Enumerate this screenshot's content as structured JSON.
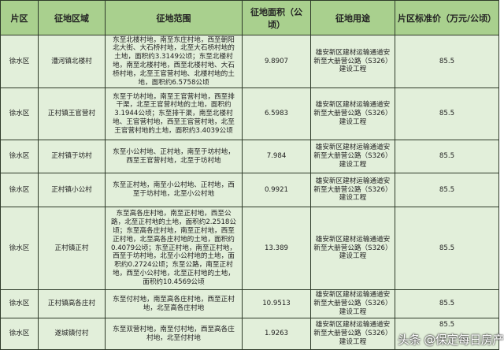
{
  "headers": [
    "片区",
    "征地区域",
    "征地范围",
    "征地面积（公顷）",
    "征地用途",
    "片区标准价（万元/公顷）"
  ],
  "rows": [
    {
      "district": "徐水区",
      "area_name": "漕河镇北楼村",
      "range": "东至北楼村地，南至东庄村地，西至朝阳北大街、大石桥村地，北至大石桥村地的土地，面积约3.3149公顷；东至北楼村地，南至北楼村地，西至北楼村地、大石桥村地，北至王官营村地、北楼村地的土地，面积约6.5758公顷",
      "size": "9.8907",
      "use": "雄安新区建材运输通道安新至大册营公路（S326）建设工程",
      "price": "85.5"
    },
    {
      "district": "徐水区",
      "area_name": "正村镇王官营村",
      "range": "东至于坊村地，南至王官营村地，西至排干渠，北至王官营村地的土地，面积约3.1944公顷；东至排干渠，南至北楼村地、王官营村地，西至王官营村地，北至王官营村地的土地，面积约3.4039公顷",
      "size": "6.5983",
      "use": "雄安新区建材运输通道安新至大册营公路（S326）建设工程",
      "price": "85.5"
    },
    {
      "district": "徐水区",
      "area_name": "正村镇于坊村",
      "range": "东至小公村地、正村地，南至于坊村地，西至王官营村地，北至于坊村地",
      "size": "7.984",
      "use": "雄安新区建材运输通道安新至大册营公路（S326）建设工程",
      "price": "85.5"
    },
    {
      "district": "徐水区",
      "area_name": "正村镇小公村",
      "range": "东至正村地，南至小公村地、正村地，西至于坊村地，北至小公村地",
      "size": "0.9921",
      "use": "雄安新区建材运输通道安新至大册营公路（S326）建设工程",
      "price": "85.5"
    },
    {
      "district": "徐水区",
      "area_name": "正村镇正村",
      "range": "东至高各庄村地，南至正村地，西至公路，北至正村地的土地，面积约2.2518公顷；东至高各庄村地，南至正村地，西至正村地，北至高各庄村地的土地，面积约0.4079公顷；东至正村地，南至正村地，西至于坊村地，北至小公村地的土地，面积约0.2724公顷；东至公路，南至正村地，西至小公村地，北至正村地的土地，面积约10.4569公顷",
      "size": "13.389",
      "use": "雄安新区建材运输通道安新至大册营公路（S326）建设工程",
      "price": "85.5"
    },
    {
      "district": "徐水区",
      "area_name": "正村镇高各庄村",
      "range": "东至付村地，南至高各庄村地，西至正村地，北至高各庄村地",
      "size": "10.9513",
      "use": "雄安新区建材运输通道安新至大册营公路（S326）建设工程",
      "price": "85.5"
    },
    {
      "district": "徐水区",
      "area_name": "遂城镇付村",
      "range": "东至双营村地，南至付村地，西至高各庄村地，北至付村地",
      "size": "1.9263",
      "use": "雄安新区建材运输通道安新至大册营公路（S326）建设工程",
      "price": "85.5"
    }
  ],
  "watermark": "头条 @保定每日房产",
  "colors": {
    "header_bg": "#a9d08e",
    "row_bg": "#e2efda"
  }
}
